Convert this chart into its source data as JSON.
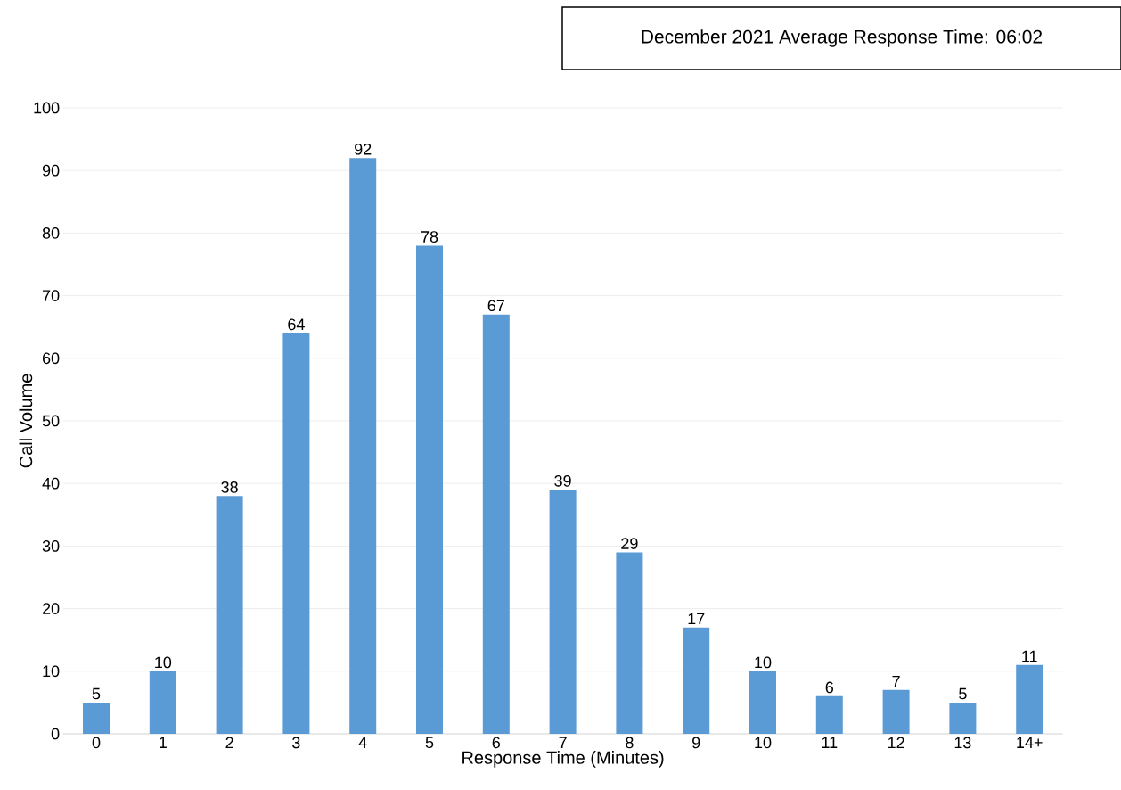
{
  "chart_data": {
    "type": "bar",
    "title": "December 2021 Average Response Time: 06:02",
    "xlabel": "Response Time (Minutes)",
    "ylabel": "Call Volume",
    "categories": [
      "0",
      "1",
      "2",
      "3",
      "4",
      "5",
      "6",
      "7",
      "8",
      "9",
      "10",
      "11",
      "12",
      "13",
      "14+"
    ],
    "values": [
      5,
      10,
      38,
      64,
      92,
      78,
      67,
      39,
      29,
      17,
      10,
      6,
      7,
      5,
      11
    ],
    "color": "#5b9bd5",
    "ylim": [
      0,
      100
    ],
    "yticks": [
      0,
      10,
      20,
      30,
      40,
      50,
      60,
      70,
      80,
      90,
      100
    ],
    "grid": "y",
    "data_labels": true
  }
}
